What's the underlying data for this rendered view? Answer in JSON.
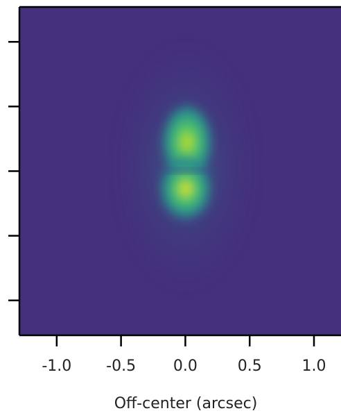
{
  "chart_data": {
    "type": "image",
    "xlabel": "Off-center (arcsec)",
    "xlim": [
      -1.29,
      1.21
    ],
    "ylim": [
      -1.27,
      1.27
    ],
    "xticks": [
      {
        "value": -1,
        "label": "-1.0"
      },
      -0.5,
      {
        "value": 0,
        "label": "0.0"
      },
      0.5,
      {
        "value": 1,
        "label": "1.0"
      }
    ],
    "yticks": [
      -1,
      -0.5,
      0,
      0.5,
      1
    ]
  }
}
